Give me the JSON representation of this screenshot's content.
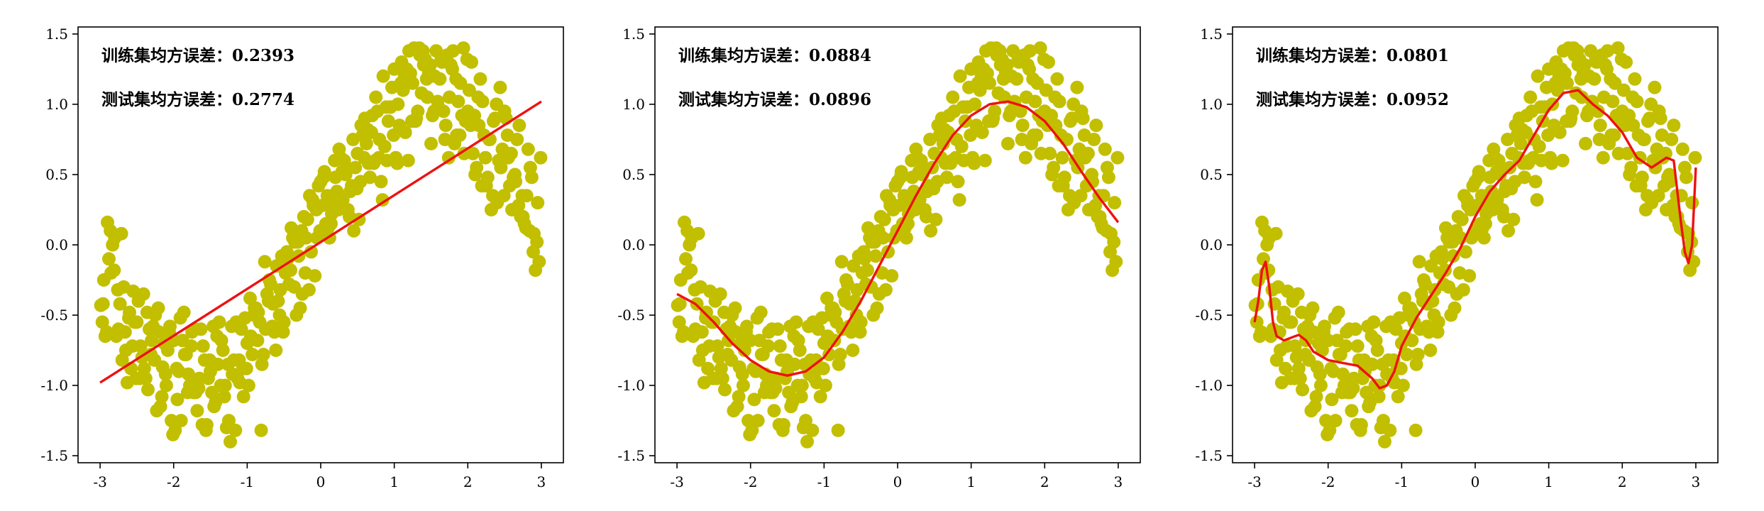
{
  "colors": {
    "points": "#c2bf00",
    "fit_line": "#ee1111",
    "axes": "#000000"
  },
  "chart_data": [
    {
      "type": "scatter",
      "panel": "left",
      "annotations": [
        "训练集均方误差：0.2393",
        "测试集均方误差：0.2774"
      ],
      "xlim": [
        -3.3,
        3.3
      ],
      "ylim": [
        -1.55,
        1.55
      ],
      "xticks": [
        -3,
        -2,
        -1,
        0,
        1,
        2,
        3
      ],
      "yticks": [
        -1.5,
        -1.0,
        -0.5,
        0.0,
        0.5,
        1.0,
        1.5
      ],
      "xtick_labels": [
        "-3",
        "-2",
        "-1",
        "0",
        "1",
        "2",
        "3"
      ],
      "ytick_labels": [
        "-1.5",
        "-1.0",
        "-0.5",
        "0.0",
        "0.5",
        "1.0",
        "1.5"
      ],
      "fit_x": [
        -3.0,
        3.0
      ],
      "fit_y": [
        -0.98,
        1.02
      ]
    },
    {
      "type": "scatter",
      "panel": "middle",
      "annotations": [
        "训练集均方误差：0.0884",
        "测试集均方误差：0.0896"
      ],
      "xlim": [
        -3.3,
        3.3
      ],
      "ylim": [
        -1.55,
        1.55
      ],
      "xticks": [
        -3,
        -2,
        -1,
        0,
        1,
        2,
        3
      ],
      "yticks": [
        -1.5,
        -1.0,
        -0.5,
        0.0,
        0.5,
        1.0,
        1.5
      ],
      "xtick_labels": [
        "-3",
        "-2",
        "-1",
        "0",
        "1",
        "2",
        "3"
      ],
      "ytick_labels": [
        "-1.5",
        "-1.0",
        "-0.5",
        "0.0",
        "0.5",
        "1.0",
        "1.5"
      ],
      "fit_x": [
        -3.0,
        -2.75,
        -2.5,
        -2.25,
        -2.0,
        -1.75,
        -1.5,
        -1.25,
        -1.0,
        -0.75,
        -0.5,
        -0.25,
        0.0,
        0.25,
        0.5,
        0.75,
        1.0,
        1.25,
        1.5,
        1.75,
        2.0,
        2.25,
        2.5,
        2.75,
        3.0
      ],
      "fit_y": [
        -0.35,
        -0.42,
        -0.55,
        -0.7,
        -0.82,
        -0.9,
        -0.93,
        -0.9,
        -0.8,
        -0.62,
        -0.4,
        -0.15,
        0.1,
        0.35,
        0.58,
        0.78,
        0.92,
        1.0,
        1.02,
        0.98,
        0.88,
        0.72,
        0.52,
        0.33,
        0.16
      ]
    },
    {
      "type": "scatter",
      "panel": "right",
      "annotations": [
        "训练集均方误差：0.0801",
        "测试集均方误差：0.0952"
      ],
      "xlim": [
        -3.3,
        3.3
      ],
      "ylim": [
        -1.55,
        1.55
      ],
      "xticks": [
        -3,
        -2,
        -1,
        0,
        1,
        2,
        3
      ],
      "yticks": [
        -1.5,
        -1.0,
        -0.5,
        0.0,
        0.5,
        1.0,
        1.5
      ],
      "xtick_labels": [
        "-3",
        "-2",
        "-1",
        "0",
        "1",
        "2",
        "3"
      ],
      "ytick_labels": [
        "-1.5",
        "-1.0",
        "-0.5",
        "0.0",
        "0.5",
        "1.0",
        "1.5"
      ],
      "fit_x": [
        -3.0,
        -2.95,
        -2.9,
        -2.85,
        -2.8,
        -2.75,
        -2.7,
        -2.6,
        -2.5,
        -2.4,
        -2.3,
        -2.2,
        -2.0,
        -1.8,
        -1.6,
        -1.4,
        -1.3,
        -1.2,
        -1.1,
        -1.0,
        -0.8,
        -0.6,
        -0.4,
        -0.2,
        0.0,
        0.2,
        0.4,
        0.6,
        0.8,
        1.0,
        1.2,
        1.4,
        1.6,
        1.8,
        2.0,
        2.2,
        2.4,
        2.6,
        2.7,
        2.8,
        2.85,
        2.9,
        2.95,
        3.0
      ],
      "fit_y": [
        -0.55,
        -0.4,
        -0.18,
        -0.12,
        -0.3,
        -0.55,
        -0.65,
        -0.68,
        -0.66,
        -0.64,
        -0.68,
        -0.76,
        -0.82,
        -0.84,
        -0.86,
        -0.95,
        -1.02,
        -1.0,
        -0.9,
        -0.72,
        -0.52,
        -0.36,
        -0.2,
        -0.02,
        0.2,
        0.38,
        0.5,
        0.6,
        0.78,
        0.96,
        1.08,
        1.1,
        1.0,
        0.92,
        0.8,
        0.62,
        0.55,
        0.62,
        0.6,
        0.15,
        -0.05,
        -0.13,
        0.0,
        0.55
      ]
    }
  ],
  "points": {
    "x": [
      -2.99,
      -2.95,
      -2.9,
      -2.85,
      -2.8,
      -2.75,
      -2.7,
      -2.65,
      -2.6,
      -2.55,
      -2.5,
      -2.45,
      -2.4,
      -2.35,
      -2.3,
      -2.25,
      -2.2,
      -2.15,
      -2.1,
      -2.05,
      -2.0,
      -1.95,
      -1.9,
      -1.85,
      -1.8,
      -1.75,
      -1.7,
      -1.65,
      -1.6,
      -1.55,
      -1.5,
      -1.45,
      -1.4,
      -1.35,
      -1.3,
      -1.25,
      -1.2,
      -1.15,
      -1.1,
      -1.05,
      -1.0,
      -0.95,
      -0.9,
      -0.85,
      -0.8,
      -0.75,
      -0.7,
      -0.65,
      -0.6,
      -0.55,
      -0.5,
      -0.45,
      -0.4,
      -0.35,
      -0.3,
      -0.25,
      -0.2,
      -0.15,
      -0.1,
      -0.05,
      0.0,
      0.05,
      0.1,
      0.15,
      0.2,
      0.25,
      0.3,
      0.35,
      0.4,
      0.45,
      0.5,
      0.55,
      0.6,
      0.65,
      0.7,
      0.75,
      0.8,
      0.85,
      0.9,
      0.95,
      1.0,
      1.05,
      1.1,
      1.15,
      1.2,
      1.25,
      1.3,
      1.35,
      1.4,
      1.45,
      1.5,
      1.55,
      1.6,
      1.65,
      1.7,
      1.75,
      1.8,
      1.85,
      1.9,
      1.95,
      2.0,
      2.05,
      2.1,
      2.15,
      2.2,
      2.25,
      2.3,
      2.35,
      2.4,
      2.45,
      2.5,
      2.55,
      2.6,
      2.65,
      2.7,
      2.75,
      2.8,
      2.85,
      2.9,
      2.95,
      -2.97,
      -2.88,
      -2.78,
      -2.68,
      -2.58,
      -2.48,
      -2.38,
      -2.28,
      -2.18,
      -2.08,
      -1.98,
      -1.88,
      -1.78,
      -1.68,
      -1.58,
      -1.48,
      -1.38,
      -1.28,
      -1.18,
      -1.08,
      -0.98,
      -0.88,
      -0.78,
      -0.68,
      -0.58,
      -0.48,
      -0.38,
      -0.28,
      -0.18,
      -0.08,
      0.02,
      0.12,
      0.22,
      0.32,
      0.42,
      0.52,
      0.62,
      0.72,
      0.82,
      0.92,
      1.02,
      1.12,
      1.22,
      1.32,
      1.42,
      1.52,
      1.62,
      1.72,
      1.82,
      1.92,
      2.02,
      2.12,
      2.22,
      2.32,
      2.42,
      2.52,
      2.62,
      2.72,
      2.82,
      2.92,
      -2.93,
      -2.83,
      -2.73,
      -2.63,
      -2.53,
      -2.43,
      -2.33,
      -2.23,
      -2.13,
      -2.03,
      -1.93,
      -1.83,
      -1.73,
      -1.63,
      -1.53,
      -1.43,
      -1.33,
      -1.23,
      -1.13,
      -1.03,
      -0.93,
      -0.83,
      -0.73,
      -0.63,
      -0.53,
      -0.43,
      -0.33,
      -0.23,
      -0.13,
      -0.03,
      0.07,
      0.17,
      0.27,
      0.37,
      0.47,
      0.57,
      0.67,
      0.77,
      0.87,
      0.97,
      1.07,
      1.17,
      1.27,
      1.37,
      1.47,
      1.57,
      1.67,
      1.77,
      1.87,
      1.97,
      2.07,
      2.17,
      2.27,
      2.37,
      2.47,
      2.57,
      2.67,
      2.77,
      2.87,
      2.97,
      -2.96,
      -2.86,
      -2.76,
      -2.66,
      -2.56,
      -2.46,
      -2.36,
      -2.26,
      -2.16,
      -2.06,
      -1.96,
      -1.86,
      -1.76,
      -1.66,
      -1.56,
      -1.46,
      -1.36,
      -1.26,
      -1.16,
      -1.06,
      -0.96,
      -0.86,
      -0.76,
      -0.66,
      -0.56,
      -0.46,
      -0.36,
      -0.26,
      -0.16,
      -0.06,
      0.04,
      0.14,
      0.24,
      0.34,
      0.44,
      0.54,
      0.64,
      0.74,
      0.84,
      0.94,
      1.04,
      1.14,
      1.24,
      1.34,
      1.44,
      1.54,
      1.64,
      1.74,
      1.84,
      1.94,
      2.04,
      2.14,
      2.24,
      2.34,
      2.44,
      2.54,
      2.64,
      2.74,
      2.84,
      2.94,
      -2.91,
      -2.81,
      -2.71,
      -2.61,
      -2.51,
      -2.41,
      -2.31,
      -2.21,
      -2.11,
      -2.01,
      -1.91,
      -1.81,
      -1.71,
      -1.61,
      -1.51,
      -1.41,
      -1.31,
      -1.21,
      -1.11,
      -1.01,
      -0.91,
      -0.81,
      -0.71,
      -0.61,
      -0.51,
      -0.41,
      -0.31,
      -0.21,
      -0.11,
      -0.01,
      0.09,
      0.19,
      0.29,
      0.39,
      0.49,
      0.59,
      0.69,
      0.79,
      0.89,
      0.99,
      1.09,
      1.19,
      1.29,
      1.39,
      1.49,
      1.59,
      1.69,
      1.79,
      1.89,
      1.99,
      2.09,
      2.19,
      2.29,
      2.39,
      2.49,
      2.59,
      2.69,
      2.79,
      2.89,
      2.99
    ],
    "y": [
      -0.43,
      -0.25,
      0.16,
      -0.2,
      0.05,
      -0.6,
      -0.82,
      -0.75,
      -0.48,
      -0.33,
      -0.55,
      -0.72,
      -0.88,
      -1.03,
      -0.68,
      -0.5,
      -0.62,
      -0.87,
      -1.0,
      -0.58,
      -0.68,
      -1.1,
      -1.25,
      -0.78,
      -0.92,
      -0.62,
      -1.05,
      -0.95,
      -0.72,
      -1.28,
      -0.9,
      -1.15,
      -0.85,
      -0.68,
      -1.0,
      -1.25,
      -0.92,
      -0.55,
      -0.98,
      -1.08,
      -0.7,
      -0.65,
      -0.45,
      -0.48,
      -0.85,
      -0.6,
      -0.25,
      -0.42,
      -0.15,
      -0.32,
      -0.55,
      -0.1,
      0.12,
      0.02,
      -0.08,
      -0.35,
      0.05,
      0.35,
      0.28,
      0.05,
      0.45,
      0.52,
      0.12,
      0.22,
      0.48,
      0.68,
      0.32,
      0.55,
      0.38,
      0.1,
      0.65,
      0.85,
      0.9,
      0.58,
      0.92,
      1.05,
      0.75,
      1.2,
      0.6,
      0.98,
      1.25,
      1.0,
      1.3,
      0.8,
      1.38,
      1.15,
      0.9,
      1.35,
      1.28,
      1.05,
      0.72,
      1.2,
      0.98,
      1.3,
      0.85,
      1.05,
      1.38,
      0.78,
      1.15,
      0.65,
      0.95,
      1.3,
      0.5,
      0.85,
      1.02,
      0.42,
      0.75,
      0.88,
      0.3,
      0.55,
      0.95,
      0.62,
      0.25,
      0.45,
      0.85,
      0.2,
      0.35,
      0.55,
      0.08,
      0.3,
      -0.55,
      -0.1,
      -0.65,
      -0.3,
      -0.88,
      -0.4,
      -0.95,
      -0.58,
      -1.15,
      -0.75,
      -1.32,
      -0.68,
      -1.0,
      -1.18,
      -0.82,
      -1.05,
      -0.55,
      -1.3,
      -0.82,
      -0.6,
      -1.0,
      -0.45,
      -0.78,
      -0.28,
      -0.4,
      -0.2,
      0.05,
      -0.45,
      0.18,
      -0.22,
      0.28,
      0.05,
      0.38,
      0.6,
      0.42,
      0.18,
      0.72,
      0.58,
      0.45,
      0.88,
      0.62,
      1.1,
      1.22,
      0.95,
      1.32,
      0.92,
      1.18,
      1.35,
      0.72,
      0.92,
      1.1,
      0.55,
      0.78,
      0.25,
      0.6,
      0.9,
      0.48,
      0.2,
      0.68,
      -0.18,
      -0.65,
      0.0,
      -0.42,
      -0.98,
      -0.55,
      -0.8,
      -0.6,
      -1.18,
      -0.7,
      -1.25,
      -0.9,
      -0.78,
      -1.05,
      -0.6,
      -0.95,
      -1.12,
      -0.75,
      -1.4,
      -0.95,
      -0.52,
      -0.78,
      -0.55,
      -0.35,
      -0.62,
      -0.08,
      -0.28,
      -0.5,
      0.2,
      -0.05,
      0.42,
      0.15,
      0.3,
      0.62,
      0.25,
      0.55,
      0.78,
      0.48,
      0.95,
      0.7,
      1.12,
      0.85,
      1.25,
      1.4,
      1.08,
      1.22,
      1.38,
      0.95,
      1.28,
      1.02,
      0.88,
      0.65,
      1.18,
      0.48,
      0.9,
      0.68,
      0.42,
      0.75,
      0.15,
      0.48,
      -0.12,
      -0.42,
      0.1,
      -0.32,
      -0.62,
      -0.72,
      -0.95,
      -0.48,
      -0.82,
      -1.08,
      -0.62,
      -0.88,
      -0.48,
      -0.72,
      -1.02,
      -1.32,
      -0.58,
      -1.0,
      -0.85,
      -1.32,
      -0.88,
      -0.38,
      -0.68,
      -0.12,
      -0.58,
      -0.5,
      -0.05,
      -0.3,
      0.1,
      -0.32,
      0.25,
      0.48,
      0.15,
      0.25,
      0.5,
      0.75,
      0.45,
      0.82,
      0.6,
      0.32,
      0.98,
      0.58,
      1.2,
      0.88,
      1.4,
      1.18,
      0.95,
      1.32,
      0.62,
      1.18,
      1.4,
      0.85,
      1.05,
      0.62,
      0.35,
      1.12,
      0.78,
      0.5,
      0.35,
      0.1,
      0.02,
      -0.62,
      -0.18,
      0.08,
      -0.52,
      -0.95,
      -0.35,
      -0.78,
      -0.45,
      -0.92,
      -1.35,
      -0.52,
      -1.05,
      -0.6,
      -1.28,
      -0.82,
      -0.65,
      -1.08,
      -0.58,
      -0.82,
      -0.88,
      -0.5,
      -1.32,
      -0.4,
      -0.75,
      -0.62,
      -0.18,
      0.02,
      -0.2,
      0.32,
      0.1,
      0.35,
      0.6,
      0.52,
      0.2,
      0.4,
      0.62,
      0.8,
      0.62,
      0.98,
      0.78,
      1.15,
      0.6,
      0.88,
      1.38,
      1.28,
      1.02,
      0.75,
      1.25,
      0.78,
      1.32,
      0.92,
      0.42,
      0.75,
      1.0,
      0.35,
      0.65,
      0.28,
      0.12,
      -0.05,
      0.62
    ]
  }
}
